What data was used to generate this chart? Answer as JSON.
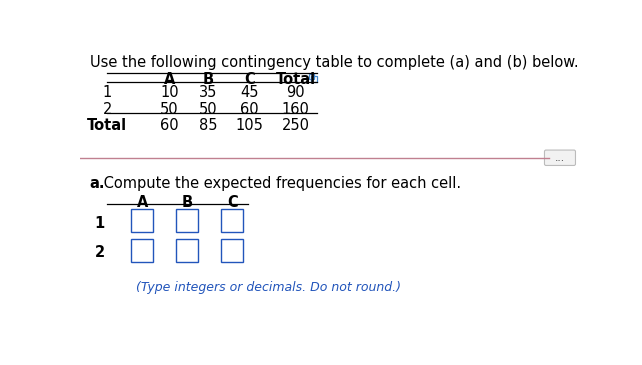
{
  "title": "Use the following contingency table to complete (a) and (b) below.",
  "table1": {
    "col_headers": [
      "A",
      "B",
      "C",
      "Total"
    ],
    "row_headers": [
      "1",
      "2",
      "Total"
    ],
    "data": [
      [
        10,
        35,
        45,
        90
      ],
      [
        50,
        50,
        60,
        160
      ],
      [
        60,
        85,
        105,
        250
      ]
    ]
  },
  "divider_color": "#c08090",
  "section_a_bold": "a.",
  "section_a_text": " Compute the expected frequencies for each cell.",
  "table2": {
    "col_headers": [
      "A",
      "B",
      "C"
    ],
    "row_headers": [
      "1",
      "2"
    ]
  },
  "hint_text": "(Type integers or decimals. Do not round.)",
  "hint_color": "#2255bb",
  "box_color": "#2255bb",
  "bg_color": "#ffffff",
  "text_color": "#000000",
  "icon_color": "#4488cc"
}
